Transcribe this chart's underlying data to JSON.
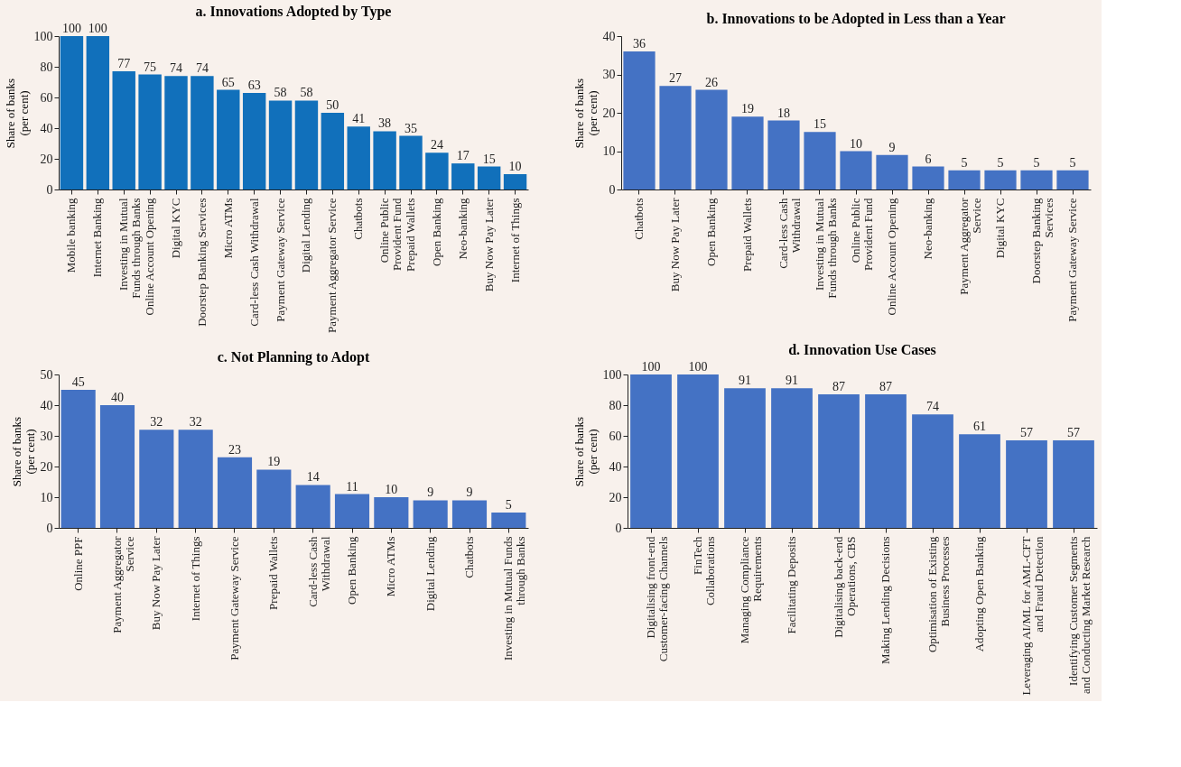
{
  "chart_data": [
    {
      "type": "bar",
      "title": "a. Innovations Adopted by Type",
      "ylabel": "Share of banks\n(per cent)",
      "categories": [
        "Mobile banking",
        "Internet Banking",
        "Investing in Mutual\nFunds through Banks",
        "Online Account Opening",
        "Digital KYC",
        "Doorstep Banking Services",
        "Micro ATMs",
        "Card-less Cash Withdrawal",
        "Payment Gateway Service",
        "Digital Lending",
        "Payment Aggregator Service",
        "Chatbots",
        "Online Public\nProvident Fund",
        "Prepaid Wallets",
        "Open Banking",
        "Neo-banking",
        "Buy Now Pay Later",
        "Internet of Things"
      ],
      "values": [
        100,
        100,
        77,
        75,
        74,
        74,
        65,
        63,
        58,
        58,
        50,
        41,
        38,
        35,
        24,
        17,
        15,
        10
      ],
      "color": "#1170bb",
      "ylim": [
        0,
        100
      ],
      "yticks": [
        0,
        20,
        40,
        60,
        80,
        100
      ],
      "data_labels": true,
      "grid": false
    },
    {
      "type": "bar",
      "title": "b. Innovations to be Adopted in Less than a Year",
      "ylabel": "Share of banks\n(per cent)",
      "categories": [
        "Chatbots",
        "Buy Now Pay Later",
        "Open Banking",
        "Prepaid Wallets",
        "Card-less Cash\nWithdrawal",
        "Investing in Mutual\nFunds through Banks",
        "Online Public\nProvident Fund",
        "Online Account Opening",
        "Neo-banking",
        "Payment Aggregator\nService",
        "Digital KYC",
        "Doorstep Banking\nServices",
        "Payment Gateway Service"
      ],
      "values": [
        36,
        27,
        26,
        19,
        18,
        15,
        10,
        9,
        6,
        5,
        5,
        5,
        5
      ],
      "color": "#4472c4",
      "ylim": [
        0,
        40
      ],
      "yticks": [
        0,
        10,
        20,
        30,
        40
      ],
      "data_labels": true,
      "grid": false
    },
    {
      "type": "bar",
      "title": "c. Not Planning to Adopt",
      "ylabel": "Share of banks\n(per cent)",
      "categories": [
        "Online PPF",
        "Payment Aggregator\nService",
        "Buy Now Pay Later",
        "Internet of Things",
        "Payment Gateway Service",
        "Prepaid Wallets",
        "Card-less Cash\nWithdrawal",
        "Open Banking",
        "Micro ATMs",
        "Digital Lending",
        "Chatbots",
        "Investing in Mutual Funds\nthrough Banks"
      ],
      "values": [
        45,
        40,
        32,
        32,
        23,
        19,
        14,
        11,
        10,
        9,
        9,
        5
      ],
      "color": "#4472c4",
      "ylim": [
        0,
        50
      ],
      "yticks": [
        0,
        10,
        20,
        30,
        40,
        50
      ],
      "data_labels": true,
      "grid": false
    },
    {
      "type": "bar",
      "title": "d. Innovation Use Cases",
      "ylabel": "Share of banks\n(per cent)",
      "categories": [
        "Digitalising front-end\nCustomer-facing Channels",
        "FinTech\nCollaborations",
        "Managing Compliance\nRequirements",
        "Facilitating Deposits",
        "Digitalising back-end\nOperations, CBS",
        "Making Lending Decisions",
        "Optimisation of Existing\nBusiness Processes",
        "Adopting Open Banking",
        "Leveraging AI/ML for AML-CFT\nand Fraud Detection",
        "Identifying Customer Segments\nand Conducting Market Research"
      ],
      "values": [
        100,
        100,
        91,
        91,
        87,
        87,
        74,
        61,
        57,
        57
      ],
      "color": "#4472c4",
      "ylim": [
        0,
        100
      ],
      "yticks": [
        0,
        20,
        40,
        60,
        80,
        100
      ],
      "data_labels": true,
      "grid": false
    }
  ]
}
